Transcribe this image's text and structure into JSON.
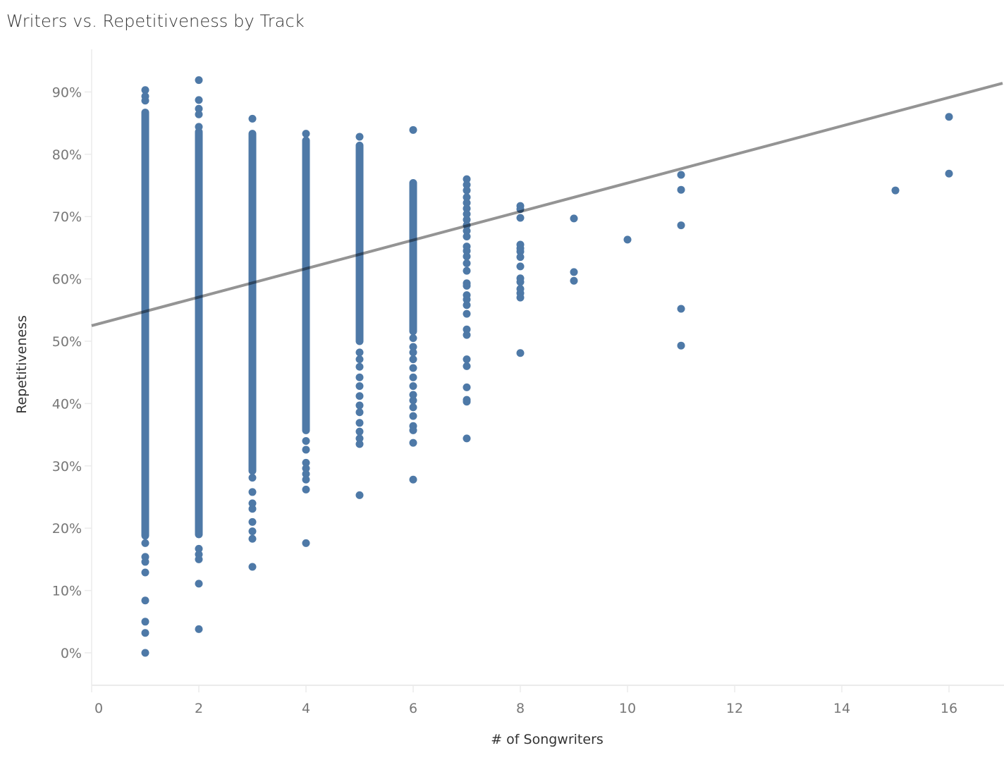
{
  "title": "Writers vs. Repetitiveness by Track",
  "colors": {
    "mark": "#4e79a7",
    "trend": "#7f7f7f",
    "axis": "#ebebeb",
    "tick_text": "#777777",
    "label_text": "#333333"
  },
  "chart_data": {
    "type": "scatter",
    "title": "Writers vs. Repetitiveness by Track",
    "xlabel": "# of Songwriters",
    "ylabel": "Repetitiveness",
    "xlim": [
      0,
      17
    ],
    "ylim": [
      -5,
      95
    ],
    "x_ticks": [
      0,
      2,
      4,
      6,
      8,
      10,
      12,
      14,
      16
    ],
    "x_tick_labels": [
      "0",
      "2",
      "4",
      "6",
      "8",
      "10",
      "12",
      "14",
      "16"
    ],
    "y_ticks": [
      0,
      10,
      20,
      30,
      40,
      50,
      60,
      70,
      80,
      90
    ],
    "y_tick_labels": [
      "0%",
      "10%",
      "20%",
      "30%",
      "40%",
      "50%",
      "60%",
      "70%",
      "80%",
      "90%"
    ],
    "grid": false,
    "legend": null,
    "series": [
      {
        "name": "Tracks",
        "note": "Columns 1-6 contain dense continuous ranges of points (dense_range) plus discrete outliers (points); values in % repetitiveness",
        "columns": [
          {
            "writers": 1,
            "dense_range": [
              18.8,
              86.7
            ],
            "points": [
              90.3,
              89.3,
              88.6,
              17.6,
              15.4,
              14.6,
              12.9,
              8.4,
              5.0,
              3.2,
              0.0
            ]
          },
          {
            "writers": 2,
            "dense_range": [
              19.0,
              83.6
            ],
            "points": [
              91.9,
              88.7,
              87.3,
              86.4,
              84.4,
              16.7,
              15.8,
              15.0,
              11.1,
              3.8
            ]
          },
          {
            "writers": 3,
            "dense_range": [
              29.2,
              83.3
            ],
            "points": [
              85.7,
              28.1,
              25.8,
              24.0,
              23.1,
              21.0,
              19.5,
              18.3,
              13.8
            ]
          },
          {
            "writers": 4,
            "dense_range": [
              35.7,
              82.2
            ],
            "points": [
              83.3,
              34.0,
              32.6,
              30.5,
              29.6,
              28.7,
              27.8,
              26.2,
              17.6
            ]
          },
          {
            "writers": 5,
            "dense_range": [
              50.0,
              81.4
            ],
            "points": [
              82.8,
              48.2,
              47.1,
              45.9,
              44.2,
              42.8,
              41.2,
              39.7,
              38.6,
              36.9,
              35.5,
              34.4,
              33.5,
              25.3
            ]
          },
          {
            "writers": 6,
            "dense_range": [
              51.6,
              75.4
            ],
            "points": [
              83.9,
              50.5,
              49.1,
              48.2,
              47.1,
              45.7,
              44.2,
              42.8,
              41.4,
              40.5,
              39.4,
              38.0,
              36.4,
              35.7,
              33.7,
              27.8
            ]
          },
          {
            "writers": 7,
            "dense_range": null,
            "points": [
              76.0,
              75.1,
              74.2,
              73.1,
              72.2,
              71.3,
              70.4,
              69.5,
              68.6,
              67.7,
              66.8,
              65.2,
              64.5,
              63.6,
              62.5,
              61.3,
              59.3,
              58.9,
              57.4,
              56.7,
              55.8,
              54.4,
              51.9,
              51.0,
              47.1,
              46.0,
              42.6,
              40.6,
              40.3,
              34.4
            ]
          },
          {
            "writers": 8,
            "dense_range": null,
            "points": [
              71.7,
              71.2,
              69.8,
              65.5,
              64.9,
              64.4,
              63.5,
              62.0,
              60.1,
              59.5,
              58.4,
              57.7,
              57.0,
              48.1
            ]
          },
          {
            "writers": 9,
            "dense_range": null,
            "points": [
              69.7,
              61.1,
              59.7
            ]
          },
          {
            "writers": 10,
            "dense_range": null,
            "points": [
              66.3
            ]
          },
          {
            "writers": 11,
            "dense_range": null,
            "points": [
              76.7,
              74.3,
              68.6,
              55.2,
              49.3
            ]
          },
          {
            "writers": 15,
            "dense_range": null,
            "points": [
              74.2
            ]
          },
          {
            "writers": 16,
            "dense_range": null,
            "points": [
              86.0,
              76.9
            ]
          }
        ]
      }
    ],
    "trend_line": {
      "type": "linear",
      "x": [
        0,
        17
      ],
      "y": [
        52.5,
        91.4
      ],
      "slope_per_writer": 2.29,
      "intercept": 52.5
    }
  }
}
